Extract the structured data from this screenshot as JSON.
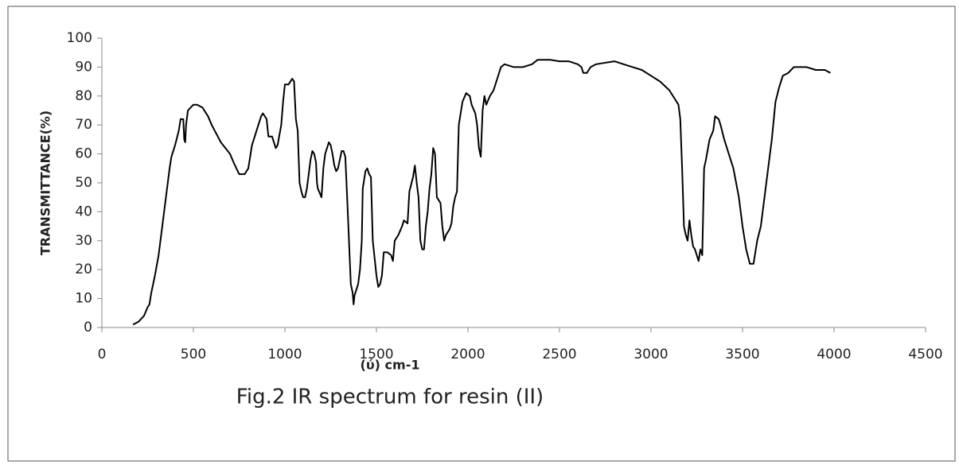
{
  "chart_data": {
    "type": "line",
    "caption": "Fig.2 IR spectrum for resin (II)",
    "x_label": "(ύ) cm-1",
    "y_label": "TRANSMITTANCE(%)",
    "xlim": [
      0,
      4500
    ],
    "xticks": [
      0,
      500,
      1000,
      1500,
      2000,
      2500,
      3000,
      3500,
      4000,
      4500
    ],
    "ylim": [
      0,
      100
    ],
    "yticks": [
      0,
      10,
      20,
      30,
      40,
      50,
      60,
      70,
      80,
      90,
      100
    ],
    "grid": false,
    "series": [
      {
        "color": "#000000",
        "x": [
          170,
          200,
          230,
          250,
          260,
          270,
          290,
          310,
          330,
          350,
          370,
          380,
          400,
          420,
          430,
          445,
          450,
          455,
          460,
          470,
          500,
          520,
          550,
          580,
          600,
          650,
          700,
          720,
          750,
          780,
          800,
          820,
          850,
          870,
          880,
          900,
          910,
          930,
          950,
          960,
          980,
          990,
          1000,
          1020,
          1030,
          1040,
          1050,
          1060,
          1070,
          1080,
          1090,
          1100,
          1110,
          1120,
          1140,
          1150,
          1160,
          1170,
          1175,
          1180,
          1200,
          1210,
          1220,
          1240,
          1250,
          1260,
          1270,
          1280,
          1290,
          1300,
          1310,
          1320,
          1330,
          1340,
          1350,
          1360,
          1370,
          1375,
          1380,
          1400,
          1410,
          1420,
          1425,
          1440,
          1450,
          1460,
          1470,
          1480,
          1490,
          1500,
          1510,
          1520,
          1530,
          1540,
          1560,
          1580,
          1590,
          1600,
          1620,
          1640,
          1650,
          1670,
          1680,
          1700,
          1710,
          1720,
          1730,
          1740,
          1750,
          1760,
          1770,
          1780,
          1790,
          1800,
          1810,
          1820,
          1830,
          1840,
          1850,
          1860,
          1870,
          1880,
          1900,
          1910,
          1920,
          1930,
          1940,
          1950,
          1970,
          1990,
          2010,
          2020,
          2040,
          2050,
          2060,
          2070,
          2080,
          2090,
          2100,
          2120,
          2140,
          2160,
          2180,
          2200,
          2250,
          2300,
          2350,
          2380,
          2450,
          2500,
          2550,
          2600,
          2620,
          2630,
          2650,
          2670,
          2700,
          2800,
          2850,
          2900,
          2950,
          3000,
          3050,
          3100,
          3150,
          3160,
          3170,
          3180,
          3190,
          3200,
          3210,
          3220,
          3230,
          3240,
          3250,
          3260,
          3270,
          3280,
          3290,
          3300,
          3320,
          3340,
          3350,
          3370,
          3380,
          3400,
          3450,
          3480,
          3500,
          3520,
          3540,
          3560,
          3580,
          3600,
          3620,
          3640,
          3660,
          3680,
          3700,
          3720,
          3750,
          3780,
          3800,
          3850,
          3900,
          3950,
          3980
        ],
        "values": [
          1,
          2,
          4,
          7,
          8,
          12,
          18,
          25,
          35,
          45,
          55,
          59,
          63,
          68,
          72,
          72,
          65,
          64,
          70,
          75,
          77,
          77,
          76,
          73,
          70,
          64,
          60,
          57,
          53,
          53,
          55,
          63,
          69,
          73,
          74,
          72,
          66,
          66,
          62,
          63,
          70,
          78,
          84,
          84,
          85,
          86,
          85,
          72,
          68,
          50,
          47,
          45,
          45,
          48,
          58,
          61,
          60,
          57,
          50,
          48,
          45,
          55,
          60,
          64,
          63,
          60,
          56,
          54,
          55,
          58,
          61,
          61,
          59,
          45,
          30,
          15,
          12,
          8,
          11,
          15,
          20,
          30,
          48,
          54,
          55,
          53,
          52,
          30,
          24,
          18,
          14,
          15,
          18,
          26,
          26,
          25,
          23,
          30,
          32,
          35,
          37,
          36,
          47,
          52,
          56,
          50,
          45,
          30,
          27,
          27,
          35,
          40,
          48,
          53,
          62,
          60,
          45,
          44,
          43,
          35,
          30,
          32,
          34,
          36,
          42,
          45,
          47,
          70,
          78,
          81,
          80,
          77,
          74,
          70,
          62,
          59,
          75,
          80,
          77,
          80,
          82,
          86,
          90,
          91,
          90,
          90,
          91,
          92.5,
          92.5,
          92,
          92,
          91,
          90,
          88,
          88,
          90,
          91,
          92,
          91,
          90,
          89,
          87,
          85,
          82,
          77,
          72,
          55,
          35,
          32,
          30,
          37,
          32,
          28,
          27,
          25,
          23,
          27,
          25,
          55,
          58,
          65,
          68,
          73,
          72,
          70,
          65,
          55,
          45,
          35,
          27,
          22,
          22,
          30,
          35,
          45,
          55,
          65,
          78,
          83,
          87,
          88,
          90,
          90,
          90,
          89,
          89,
          88
        ]
      }
    ]
  }
}
